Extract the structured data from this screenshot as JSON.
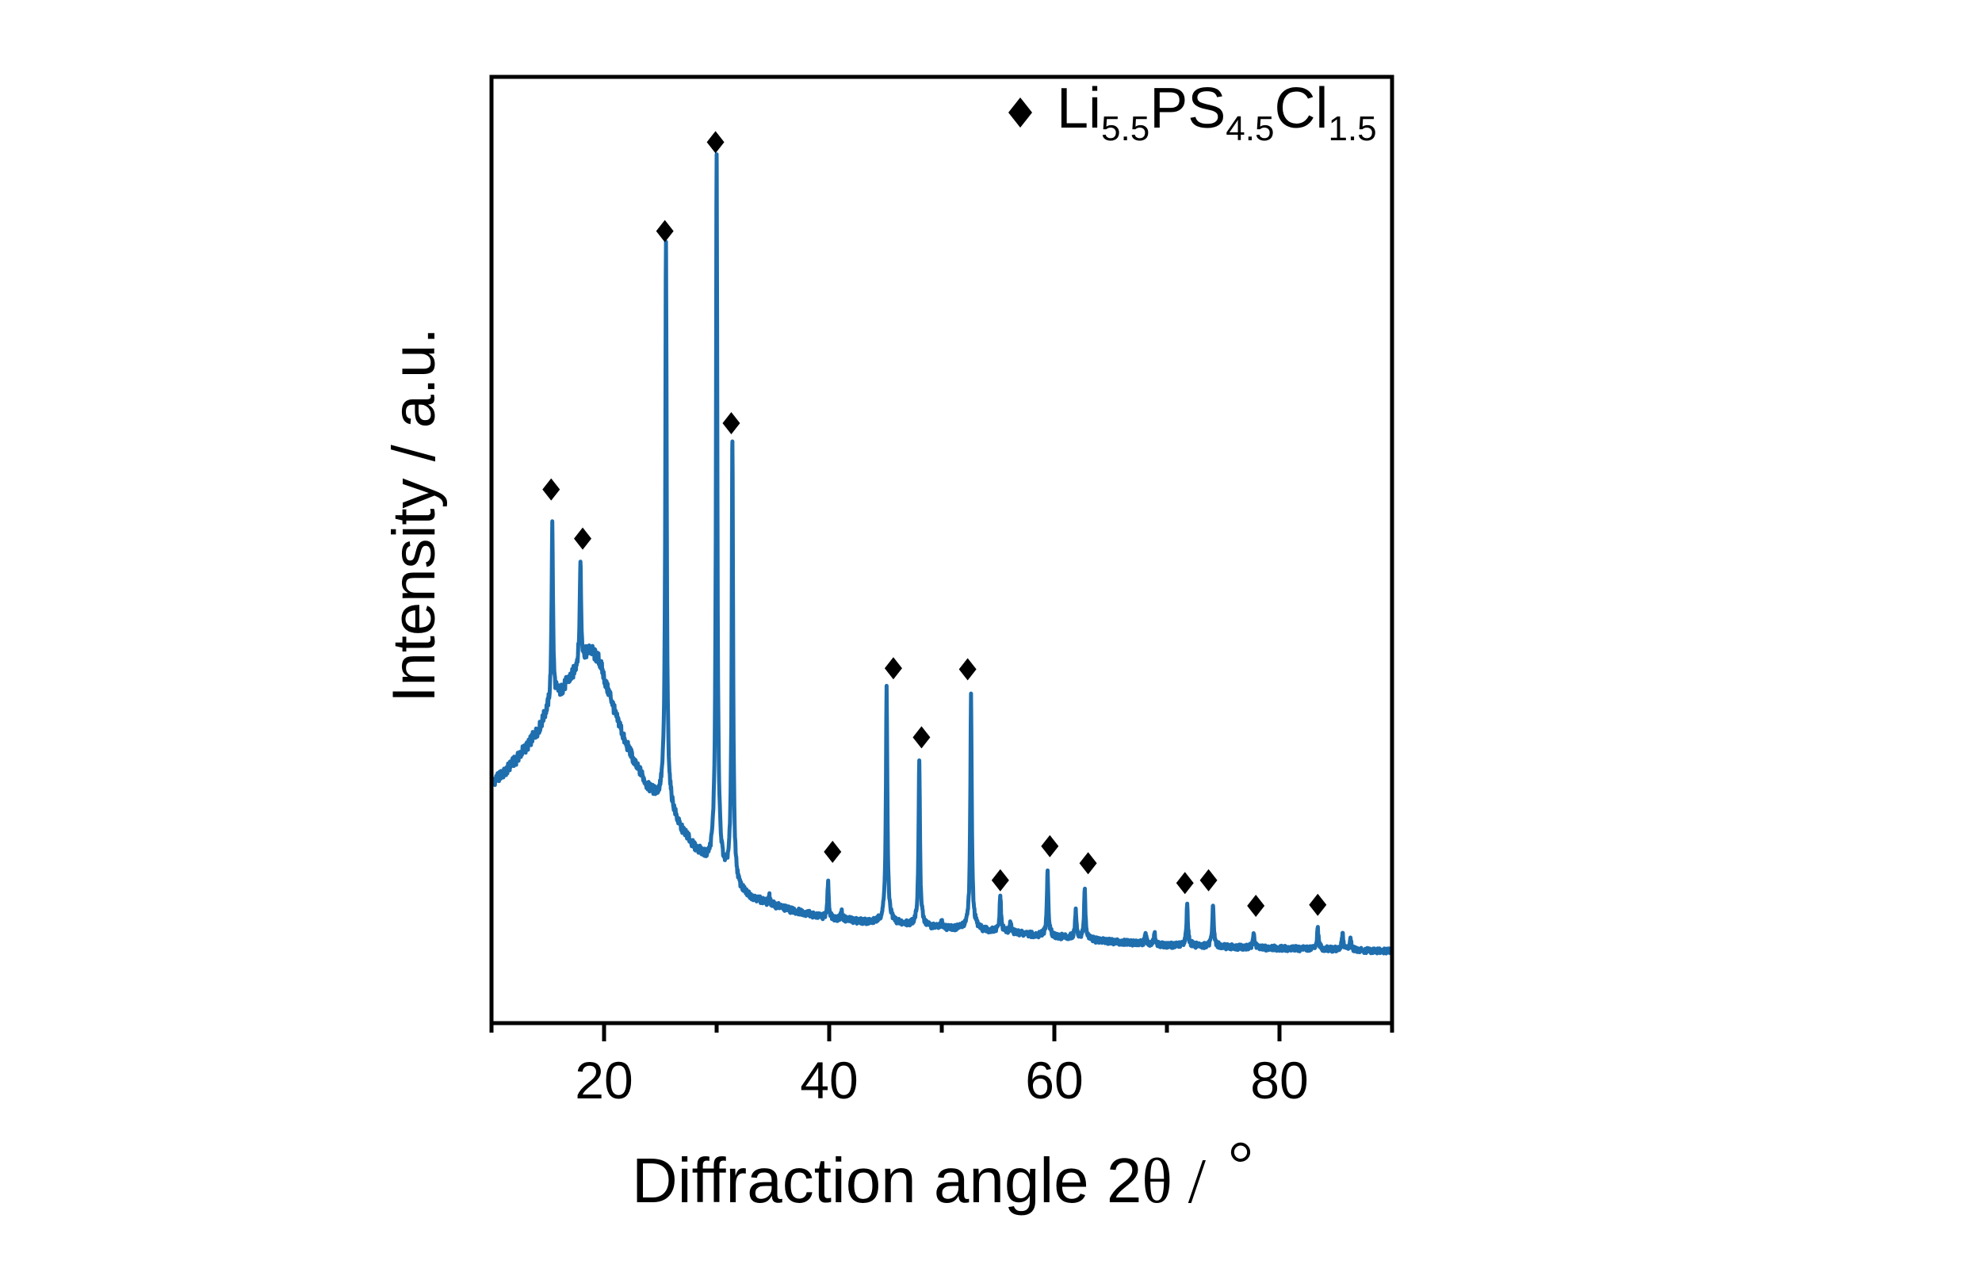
{
  "chart_data": {
    "type": "line",
    "title": "",
    "xlabel": {
      "prefix": "Diffraction angle 2",
      "symbol": "θ",
      "separator": " / ",
      "unit": "°"
    },
    "ylabel": "Intensity / a.u.",
    "xlim": [
      10,
      90
    ],
    "ylim": [
      0,
      100
    ],
    "xticks": [
      20,
      40,
      60,
      80
    ],
    "xticks_minor": [
      10,
      30,
      50,
      70,
      90
    ],
    "yticks": [],
    "grid": false,
    "line_color": "#1f6eae",
    "marker_color": "#000000",
    "legend": {
      "position": "top-right",
      "marker": "diamond",
      "label_parts": [
        {
          "text": "Li",
          "role": "base"
        },
        {
          "text": "5.5",
          "role": "sub"
        },
        {
          "text": "PS",
          "role": "base"
        },
        {
          "text": "4.5",
          "role": "sub"
        },
        {
          "text": "Cl",
          "role": "base"
        },
        {
          "text": "1.5",
          "role": "sub"
        }
      ]
    },
    "background": {
      "x": [
        10,
        11,
        12,
        13,
        14,
        15,
        16,
        17,
        18,
        18.8,
        19.5,
        20.4,
        21.2,
        22,
        23,
        24,
        25,
        26,
        27,
        28.3,
        29.6,
        31,
        32,
        33.5,
        35,
        37,
        40,
        45,
        50,
        55,
        60,
        65,
        70,
        80,
        90
      ],
      "y": [
        25.4,
        26.3,
        27.6,
        29.0,
        30.6,
        32.7,
        34.6,
        36.3,
        38.2,
        39.3,
        38.4,
        35.0,
        32.0,
        29.3,
        26.8,
        24.6,
        23.2,
        21.8,
        20.0,
        18.0,
        16.2,
        14.6,
        13.6,
        13.0,
        12.4,
        11.8,
        11.0,
        10.5,
        10.0,
        9.6,
        9.1,
        8.6,
        8.2,
        7.9,
        7.6
      ]
    },
    "peaks": [
      {
        "two_theta": 15.4,
        "intensity": 53.0,
        "marked": true,
        "marker_two_theta": 15.3,
        "marker_intensity": 56.4
      },
      {
        "two_theta": 17.9,
        "intensity": 48.7,
        "marked": true,
        "marker_two_theta": 18.1,
        "marker_intensity": 51.2
      },
      {
        "two_theta": 25.5,
        "intensity": 82.5,
        "marked": true,
        "marker_two_theta": 25.4,
        "marker_intensity": 83.7
      },
      {
        "two_theta": 30.0,
        "intensity": 91.5,
        "marked": true,
        "marker_two_theta": 29.9,
        "marker_intensity": 93.1
      },
      {
        "two_theta": 31.4,
        "intensity": 61.0,
        "marked": true,
        "marker_two_theta": 31.3,
        "marker_intensity": 63.4
      },
      {
        "two_theta": 39.9,
        "intensity": 14.9,
        "marked": true,
        "marker_two_theta": 40.3,
        "marker_intensity": 18.1
      },
      {
        "two_theta": 45.1,
        "intensity": 35.6,
        "marked": true,
        "marker_two_theta": 45.7,
        "marker_intensity": 37.5
      },
      {
        "two_theta": 48.0,
        "intensity": 27.7,
        "marked": true,
        "marker_two_theta": 48.2,
        "marker_intensity": 30.2
      },
      {
        "two_theta": 52.6,
        "intensity": 34.8,
        "marked": true,
        "marker_two_theta": 52.3,
        "marker_intensity": 37.4
      },
      {
        "two_theta": 55.2,
        "intensity": 13.4,
        "marked": true,
        "marker_two_theta": 55.2,
        "marker_intensity": 15.1
      },
      {
        "two_theta": 59.4,
        "intensity": 16.1,
        "marked": true,
        "marker_two_theta": 59.6,
        "marker_intensity": 18.7
      },
      {
        "two_theta": 62.7,
        "intensity": 14.0,
        "marked": true,
        "marker_two_theta": 63.0,
        "marker_intensity": 16.9
      },
      {
        "two_theta": 71.8,
        "intensity": 12.6,
        "marked": true,
        "marker_two_theta": 71.6,
        "marker_intensity": 14.8
      },
      {
        "two_theta": 74.1,
        "intensity": 12.4,
        "marked": true,
        "marker_two_theta": 73.7,
        "marker_intensity": 15.1
      },
      {
        "two_theta": 77.7,
        "intensity": 9.5,
        "marked": true,
        "marker_two_theta": 77.9,
        "marker_intensity": 12.4
      },
      {
        "two_theta": 83.4,
        "intensity": 10.1,
        "marked": true,
        "marker_two_theta": 83.4,
        "marker_intensity": 12.5
      }
    ],
    "minor_peaks": [
      {
        "two_theta": 34.7,
        "intensity": 13.3
      },
      {
        "two_theta": 41.1,
        "intensity": 11.8
      },
      {
        "two_theta": 50.0,
        "intensity": 10.6
      },
      {
        "two_theta": 56.1,
        "intensity": 10.6
      },
      {
        "two_theta": 61.9,
        "intensity": 12.0
      },
      {
        "two_theta": 68.1,
        "intensity": 9.5
      },
      {
        "two_theta": 68.9,
        "intensity": 9.4
      },
      {
        "two_theta": 85.6,
        "intensity": 9.5
      },
      {
        "two_theta": 86.3,
        "intensity": 9.0
      }
    ]
  }
}
